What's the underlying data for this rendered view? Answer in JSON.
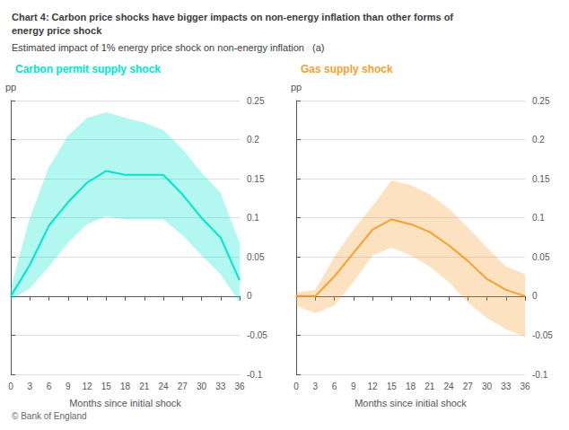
{
  "title": "Chart 4: Carbon price shocks have bigger impacts on non-energy inflation than other forms of\nenergy price shock",
  "subtitle": "Estimated impact of 1% energy price shock on non-energy inflation   (a)",
  "footer": "© Bank of England",
  "chart_data": [
    {
      "type": "line",
      "title": "Carbon permit supply shock",
      "xlabel": "Months since initial shock",
      "ylabel": "pp",
      "x": [
        0,
        3,
        6,
        9,
        12,
        15,
        18,
        21,
        24,
        27,
        30,
        33,
        36
      ],
      "xlim": [
        0,
        36
      ],
      "xticks": [
        0,
        3,
        6,
        9,
        12,
        15,
        18,
        21,
        24,
        27,
        30,
        33,
        36
      ],
      "ylim": [
        -0.1,
        0.25
      ],
      "yticks": [
        -0.1,
        -0.05,
        0,
        0.05,
        0.1,
        0.15,
        0.2,
        0.25
      ],
      "grid": true,
      "series": [
        {
          "color": "#00e5cc",
          "values": [
            0.0,
            0.04,
            0.09,
            0.12,
            0.145,
            0.16,
            0.155,
            0.155,
            0.155,
            0.13,
            0.1,
            0.075,
            0.02
          ],
          "upper": [
            0.01,
            0.1,
            0.165,
            0.205,
            0.228,
            0.235,
            0.228,
            0.222,
            0.212,
            0.188,
            0.158,
            0.132,
            0.068
          ],
          "lower": [
            -0.005,
            0.01,
            0.038,
            0.068,
            0.092,
            0.102,
            0.098,
            0.098,
            0.098,
            0.078,
            0.052,
            0.028,
            -0.008
          ]
        }
      ]
    },
    {
      "type": "line",
      "title": "Gas supply shock",
      "xlabel": "Months since initial shock",
      "ylabel": "pp",
      "x": [
        0,
        3,
        6,
        9,
        12,
        15,
        18,
        21,
        24,
        27,
        30,
        33,
        36
      ],
      "xlim": [
        0,
        36
      ],
      "xticks": [
        0,
        3,
        6,
        9,
        12,
        15,
        18,
        21,
        24,
        27,
        30,
        33,
        36
      ],
      "ylim": [
        -0.1,
        0.25
      ],
      "yticks": [
        -0.1,
        -0.05,
        0,
        0.05,
        0.1,
        0.15,
        0.2,
        0.25
      ],
      "grid": true,
      "series": [
        {
          "color": "#f5a030",
          "values": [
            0.0,
            0.0,
            0.025,
            0.055,
            0.085,
            0.098,
            0.092,
            0.082,
            0.065,
            0.045,
            0.022,
            0.008,
            0.0
          ],
          "upper": [
            0.005,
            0.008,
            0.05,
            0.085,
            0.115,
            0.148,
            0.142,
            0.13,
            0.112,
            0.088,
            0.062,
            0.038,
            0.028
          ],
          "lower": [
            -0.012,
            -0.022,
            -0.012,
            0.018,
            0.052,
            0.062,
            0.052,
            0.038,
            0.018,
            -0.008,
            -0.028,
            -0.042,
            -0.052
          ]
        }
      ]
    }
  ]
}
